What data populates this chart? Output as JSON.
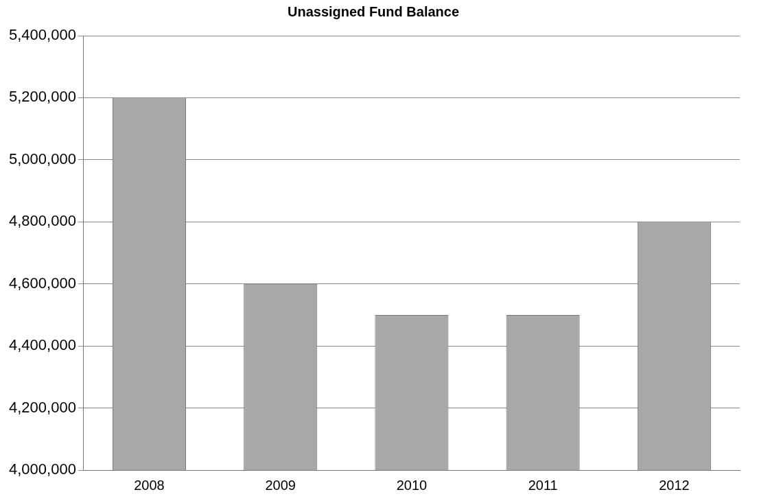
{
  "chart_data": {
    "type": "bar",
    "title": "Unassigned Fund Balance",
    "categories": [
      "2008",
      "2009",
      "2010",
      "2011",
      "2012"
    ],
    "values": [
      5200000,
      4600000,
      4500000,
      4500000,
      4800000
    ],
    "color": "#a8a8a8",
    "ylim": [
      4000000,
      5400000
    ],
    "yticks": [
      {
        "value": 4000000,
        "label": "4,000,000"
      },
      {
        "value": 4200000,
        "label": "4,200,000"
      },
      {
        "value": 4400000,
        "label": "4,400,000"
      },
      {
        "value": 4600000,
        "label": "4,600,000"
      },
      {
        "value": 4800000,
        "label": "4,800,000"
      },
      {
        "value": 5000000,
        "label": "5,000,000"
      },
      {
        "value": 5200000,
        "label": "5,200,000"
      },
      {
        "value": 5400000,
        "label": "5,400,000"
      }
    ],
    "grid": "y",
    "legend": false
  }
}
